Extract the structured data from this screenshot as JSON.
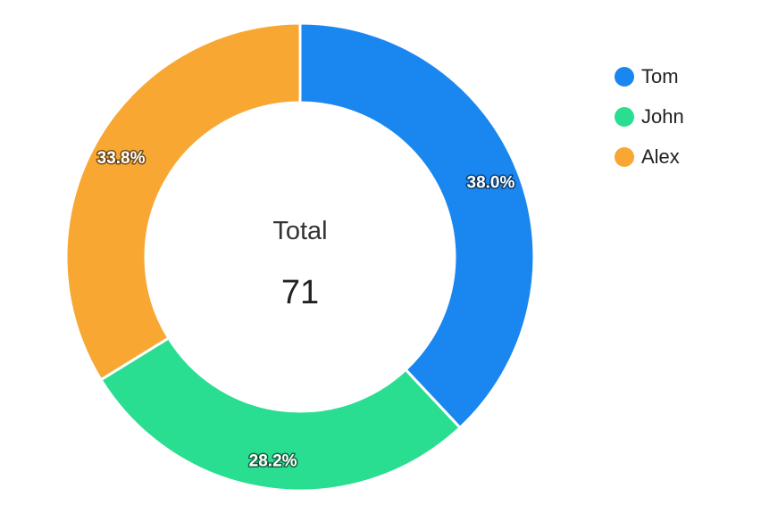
{
  "chart_data": {
    "type": "pie",
    "variant": "donut",
    "categories": [
      "Tom",
      "John",
      "Alex"
    ],
    "values": [
      27,
      20,
      24
    ],
    "percent_labels": [
      "38.0%",
      "28.2%",
      "33.8%"
    ],
    "colors": [
      "#1a86f0",
      "#29de90",
      "#f9a733"
    ],
    "center": {
      "title": "Total",
      "value": "71"
    },
    "legend": {
      "position": "top-right",
      "items": [
        {
          "label": "Tom",
          "color": "#1a86f0"
        },
        {
          "label": "John",
          "color": "#29de90"
        },
        {
          "label": "Alex",
          "color": "#f9a733"
        }
      ]
    },
    "start_angle": "top",
    "direction": "clockwise"
  }
}
